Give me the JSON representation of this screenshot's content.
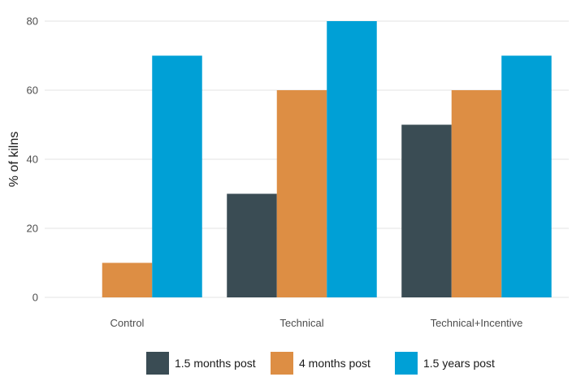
{
  "chart_data": {
    "type": "bar",
    "title": "",
    "xlabel": "",
    "ylabel": "% of kilns",
    "categories": [
      "Control",
      "Technical",
      "Technical+Incentive"
    ],
    "series": [
      {
        "name": "1.5 months post",
        "color": "#3a4c54",
        "values": [
          0,
          30,
          50
        ]
      },
      {
        "name": "4 months post",
        "color": "#dd8e44",
        "values": [
          10,
          60,
          60
        ]
      },
      {
        "name": "1.5 years post",
        "color": "#00a0d6",
        "values": [
          70,
          80,
          70
        ]
      }
    ],
    "ylim": [
      0,
      80
    ],
    "yticks": [
      0,
      20,
      40,
      60,
      80
    ],
    "grid": true,
    "legend_position": "bottom"
  }
}
